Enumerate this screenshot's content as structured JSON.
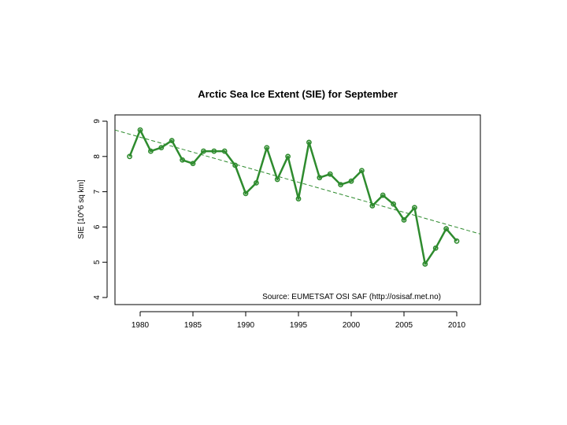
{
  "chart_data": {
    "type": "line",
    "title": "Arctic Sea Ice Extent (SIE) for September",
    "xlabel": "",
    "ylabel": "SIE [10^6 sq km]",
    "annotation": "Source: EUMETSAT OSI SAF (http://osisaf.met.no)",
    "x": [
      1979,
      1980,
      1981,
      1982,
      1983,
      1984,
      1985,
      1986,
      1987,
      1988,
      1989,
      1990,
      1991,
      1992,
      1993,
      1994,
      1995,
      1996,
      1997,
      1998,
      1999,
      2000,
      2001,
      2002,
      2003,
      2004,
      2005,
      2006,
      2007,
      2008,
      2009,
      2010
    ],
    "series": [
      {
        "values": [
          8.0,
          8.75,
          8.15,
          8.25,
          8.45,
          7.9,
          7.8,
          8.15,
          8.15,
          8.15,
          7.75,
          6.95,
          7.25,
          8.25,
          7.35,
          8.0,
          6.8,
          8.4,
          7.4,
          7.5,
          7.2,
          7.3,
          7.6,
          6.6,
          6.9,
          6.65,
          6.2,
          6.55,
          4.95,
          5.4,
          5.95,
          5.6
        ],
        "color": "#2e8b2e"
      }
    ],
    "trend": {
      "color": "#2e8b2e",
      "start": [
        1978,
        8.75
      ],
      "end": [
        2012,
        5.8
      ]
    },
    "xticks": [
      1980,
      1985,
      1990,
      1995,
      2000,
      2005,
      2010
    ],
    "xtick_labels": [
      "1980",
      "1985",
      "1990",
      "1995",
      "2000",
      "2005",
      "2010"
    ],
    "yticks": [
      4,
      5,
      6,
      7,
      8,
      9
    ],
    "ytick_labels": [
      "4",
      "5",
      "6",
      "7",
      "8",
      "9"
    ],
    "xlim": [
      1978,
      2012
    ],
    "ylim": [
      4,
      9.2
    ],
    "grid": false
  }
}
